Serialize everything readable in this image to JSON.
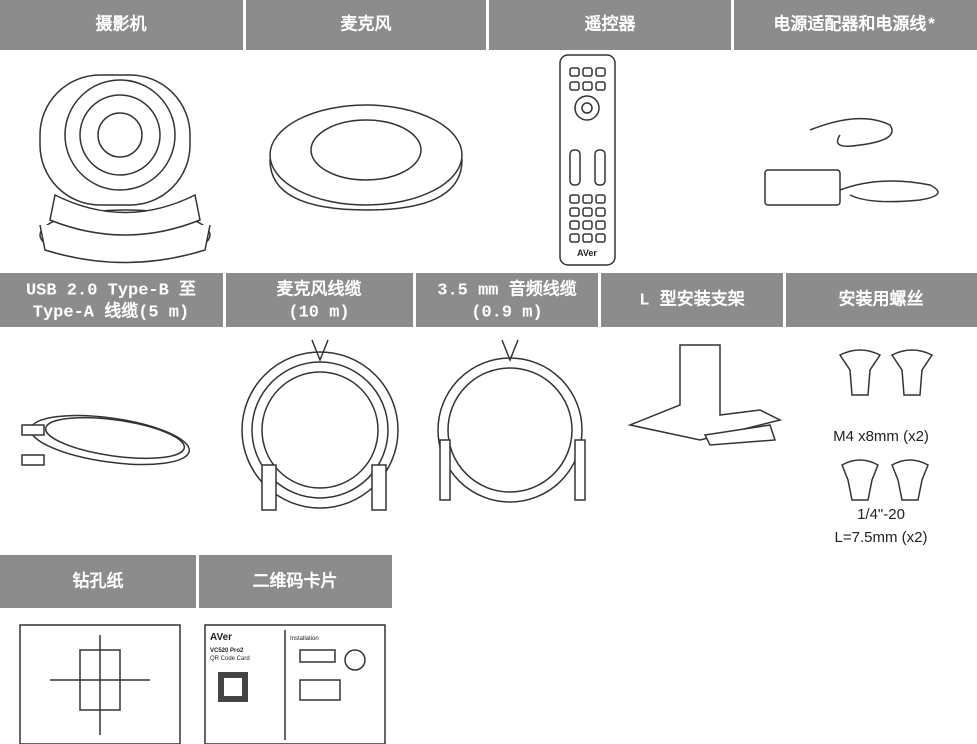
{
  "row1": {
    "headers": [
      "摄影机",
      "麦克风",
      "遥控器",
      "电源适配器和电源线*"
    ]
  },
  "row2": {
    "headers": [
      [
        "USB 2.0 Type-B 至",
        "Type-A 线缆(5 m)"
      ],
      [
        "麦克风线缆",
        "(10 m)"
      ],
      [
        "3.5 mm 音频线缆",
        "(0.9 m)"
      ],
      [
        "L 型安装支架"
      ],
      [
        "安装用螺丝"
      ]
    ]
  },
  "screws": {
    "labels": [
      "M4 x8mm (x2)",
      "1/4\"-20",
      "L=7.5mm (x2)"
    ]
  },
  "row3": {
    "headers": [
      "钻孔纸",
      "二维码卡片"
    ]
  },
  "remote": {
    "brand": "AVer"
  },
  "qr_card": {
    "brand": "AVer",
    "model": "VC520 Pro2",
    "subtitle": "QR Code Card",
    "section": "Installation"
  }
}
